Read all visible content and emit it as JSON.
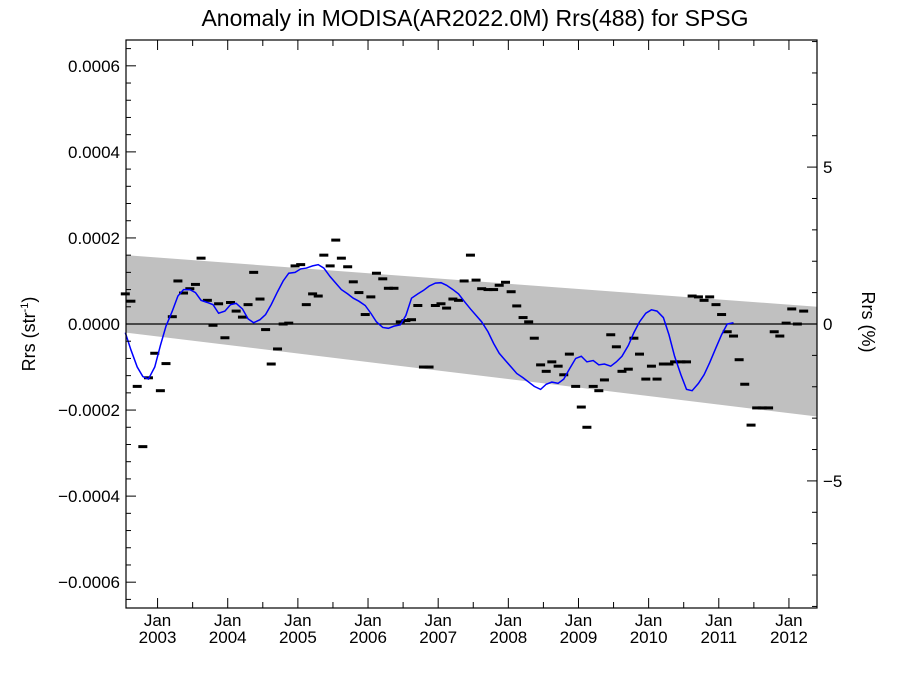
{
  "chart_data": {
    "type": "line",
    "title": "Anomaly in MODISA(AR2022.0M) Rrs(488) for SPSG",
    "ylabel_left": "Rrs (str",
    "ylabel_left_sup": "-1",
    "ylabel_left_close": ")",
    "ylabel_right": "Rrs (%)",
    "xlabel": "",
    "x_range": [
      2002.55,
      2012.4
    ],
    "y_range_left": [
      -0.00066,
      0.00066
    ],
    "y_range_right": [
      -9.05,
      9.05
    ],
    "y_ticks_left": [
      "0.0006",
      "0.0004",
      "0.0002",
      "0.0000",
      "−0.0002",
      "−0.0004",
      "−0.0006"
    ],
    "y_tick_values_left": [
      0.0006,
      0.0004,
      0.0002,
      0.0,
      -0.0002,
      -0.0004,
      -0.0006
    ],
    "y_ticks_right": [
      "5",
      "0",
      "−5"
    ],
    "y_tick_values_right": [
      5,
      0,
      -5
    ],
    "x_ticks": [
      {
        "x": 2003.0,
        "month": "Jan",
        "year": "2003"
      },
      {
        "x": 2004.0,
        "month": "Jan",
        "year": "2004"
      },
      {
        "x": 2005.0,
        "month": "Jan",
        "year": "2005"
      },
      {
        "x": 2006.0,
        "month": "Jan",
        "year": "2006"
      },
      {
        "x": 2007.0,
        "month": "Jan",
        "year": "2007"
      },
      {
        "x": 2008.0,
        "month": "Jan",
        "year": "2008"
      },
      {
        "x": 2009.0,
        "month": "Jan",
        "year": "2009"
      },
      {
        "x": 2010.0,
        "month": "Jan",
        "year": "2010"
      },
      {
        "x": 2011.0,
        "month": "Jan",
        "year": "2011"
      },
      {
        "x": 2012.0,
        "month": "Jan",
        "year": "2012"
      }
    ],
    "band": {
      "color": "#c0c0c0",
      "upper": [
        [
          2002.55,
          0.00016
        ],
        [
          2012.4,
          4e-05
        ]
      ],
      "lower": [
        [
          2002.55,
          -2e-05
        ],
        [
          2012.4,
          -0.000215
        ]
      ]
    },
    "zero_line": true,
    "grid": false,
    "series": [
      {
        "style": "dash-markers",
        "color": "#000000",
        "points": [
          [
            2002.54,
            7e-05
          ],
          [
            2002.62,
            5.3e-05
          ],
          [
            2002.71,
            -0.000145
          ],
          [
            2002.79,
            -0.000285
          ],
          [
            2002.87,
            -0.000125
          ],
          [
            2002.96,
            -6.8e-05
          ],
          [
            2003.04,
            -0.000155
          ],
          [
            2003.12,
            -9.2e-05
          ],
          [
            2003.21,
            1.7e-05
          ],
          [
            2003.29,
            0.0001
          ],
          [
            2003.37,
            7.2e-05
          ],
          [
            2003.46,
            8.2e-05
          ],
          [
            2003.54,
            9.2e-05
          ],
          [
            2003.62,
            0.000153
          ],
          [
            2003.71,
            5.5e-05
          ],
          [
            2003.79,
            -3e-06
          ],
          [
            2003.87,
            4.7e-05
          ],
          [
            2003.96,
            -3.2e-05
          ],
          [
            2004.04,
            5e-05
          ],
          [
            2004.12,
            3e-05
          ],
          [
            2004.21,
            1.6e-05
          ],
          [
            2004.29,
            4.5e-05
          ],
          [
            2004.37,
            0.00012
          ],
          [
            2004.46,
            5.8e-05
          ],
          [
            2004.54,
            -1.3e-05
          ],
          [
            2004.62,
            -9.3e-05
          ],
          [
            2004.71,
            -5.8e-05
          ],
          [
            2004.79,
            0.0
          ],
          [
            2004.87,
            2e-06
          ],
          [
            2004.96,
            0.000135
          ],
          [
            2005.04,
            0.000138
          ],
          [
            2005.12,
            4.5e-05
          ],
          [
            2005.21,
            7e-05
          ],
          [
            2005.29,
            6.5e-05
          ],
          [
            2005.37,
            0.00016
          ],
          [
            2005.46,
            0.000135
          ],
          [
            2005.54,
            0.000195
          ],
          [
            2005.62,
            0.000153
          ],
          [
            2005.71,
            0.000133
          ],
          [
            2005.79,
            9.8e-05
          ],
          [
            2005.87,
            7.3e-05
          ],
          [
            2005.96,
            2.2e-05
          ],
          [
            2006.04,
            6.3e-05
          ],
          [
            2006.12,
            0.000118
          ],
          [
            2006.21,
            0.000105
          ],
          [
            2006.29,
            8.3e-05
          ],
          [
            2006.37,
            8.3e-05
          ],
          [
            2006.46,
            5e-06
          ],
          [
            2006.54,
            8e-06
          ],
          [
            2006.62,
            1e-05
          ],
          [
            2006.71,
            4.3e-05
          ],
          [
            2006.79,
            -0.0001
          ],
          [
            2006.87,
            -0.0001
          ],
          [
            2006.96,
            4.3e-05
          ],
          [
            2007.04,
            4.7e-05
          ],
          [
            2007.12,
            3.7e-05
          ],
          [
            2007.21,
            5.8e-05
          ],
          [
            2007.29,
            5.5e-05
          ],
          [
            2007.37,
            0.0001
          ],
          [
            2007.46,
            0.00016
          ],
          [
            2007.54,
            0.000102
          ],
          [
            2007.62,
            8.2e-05
          ],
          [
            2007.71,
            8e-05
          ],
          [
            2007.79,
            8e-05
          ],
          [
            2007.87,
            9e-05
          ],
          [
            2007.96,
            9.7e-05
          ],
          [
            2008.04,
            7.5e-05
          ],
          [
            2008.12,
            4.2e-05
          ],
          [
            2008.21,
            1.5e-05
          ],
          [
            2008.29,
            5e-06
          ],
          [
            2008.37,
            -3.3e-05
          ],
          [
            2008.46,
            -9.5e-05
          ],
          [
            2008.54,
            -0.00011
          ],
          [
            2008.62,
            -8.8e-05
          ],
          [
            2008.71,
            -9.8e-05
          ],
          [
            2008.79,
            -0.000118
          ],
          [
            2008.87,
            -7e-05
          ],
          [
            2008.96,
            -0.000145
          ],
          [
            2009.04,
            -0.000193
          ],
          [
            2009.12,
            -0.00024
          ],
          [
            2009.21,
            -0.000145
          ],
          [
            2009.29,
            -0.000155
          ],
          [
            2009.37,
            -0.00013
          ],
          [
            2009.46,
            -2.5e-05
          ],
          [
            2009.54,
            -5.3e-05
          ],
          [
            2009.62,
            -0.00011
          ],
          [
            2009.71,
            -0.000105
          ],
          [
            2009.79,
            -3.3e-05
          ],
          [
            2009.87,
            -7e-05
          ],
          [
            2009.96,
            -0.000128
          ],
          [
            2010.04,
            -9.8e-05
          ],
          [
            2010.12,
            -0.000128
          ],
          [
            2010.21,
            -9.3e-05
          ],
          [
            2010.29,
            -9.3e-05
          ],
          [
            2010.37,
            -8.8e-05
          ],
          [
            2010.46,
            -8.8e-05
          ],
          [
            2010.54,
            -8.8e-05
          ],
          [
            2010.62,
            6.5e-05
          ],
          [
            2010.71,
            6.3e-05
          ],
          [
            2010.79,
            5.5e-05
          ],
          [
            2010.87,
            6.3e-05
          ],
          [
            2010.96,
            4.5e-05
          ],
          [
            2011.04,
            2.2e-05
          ],
          [
            2011.12,
            -1.8e-05
          ],
          [
            2011.21,
            -2.8e-05
          ],
          [
            2011.29,
            -8.3e-05
          ],
          [
            2011.37,
            -0.00014
          ],
          [
            2011.46,
            -0.000235
          ],
          [
            2011.54,
            -0.000195
          ],
          [
            2011.62,
            -0.000195
          ],
          [
            2011.71,
            -0.000195
          ],
          [
            2011.79,
            -1.8e-05
          ],
          [
            2011.87,
            -2.8e-05
          ],
          [
            2011.96,
            2e-06
          ],
          [
            2012.04,
            3.5e-05
          ],
          [
            2012.12,
            0.0
          ],
          [
            2012.21,
            3e-05
          ]
        ]
      },
      {
        "style": "line",
        "color": "#0000ff",
        "points": [
          [
            2002.54,
            -2e-05
          ],
          [
            2002.62,
            -6e-05
          ],
          [
            2002.71,
            -0.0001
          ],
          [
            2002.79,
            -0.000122
          ],
          [
            2002.87,
            -0.000128
          ],
          [
            2002.96,
            -0.0001
          ],
          [
            2003.04,
            -5e-05
          ],
          [
            2003.12,
            -5e-06
          ],
          [
            2003.21,
            3e-05
          ],
          [
            2003.29,
            6.5e-05
          ],
          [
            2003.37,
            8e-05
          ],
          [
            2003.46,
            8e-05
          ],
          [
            2003.54,
            7.3e-05
          ],
          [
            2003.62,
            5.5e-05
          ],
          [
            2003.71,
            5e-05
          ],
          [
            2003.79,
            4.5e-05
          ],
          [
            2003.87,
            2.5e-05
          ],
          [
            2003.96,
            3e-05
          ],
          [
            2004.04,
            4.5e-05
          ],
          [
            2004.12,
            4.8e-05
          ],
          [
            2004.21,
            3.5e-05
          ],
          [
            2004.29,
            1.2e-05
          ],
          [
            2004.37,
            3e-06
          ],
          [
            2004.46,
            1e-05
          ],
          [
            2004.54,
            2.2e-05
          ],
          [
            2004.62,
            4.5e-05
          ],
          [
            2004.71,
            7.5e-05
          ],
          [
            2004.79,
            0.0001
          ],
          [
            2004.87,
            0.000118
          ],
          [
            2004.96,
            0.00012
          ],
          [
            2005.04,
            0.000128
          ],
          [
            2005.12,
            0.00013
          ],
          [
            2005.21,
            0.000135
          ],
          [
            2005.29,
            0.000138
          ],
          [
            2005.37,
            0.00013
          ],
          [
            2005.46,
            0.00011
          ],
          [
            2005.54,
            9.5e-05
          ],
          [
            2005.62,
            8e-05
          ],
          [
            2005.71,
            7e-05
          ],
          [
            2005.79,
            6e-05
          ],
          [
            2005.87,
            5.3e-05
          ],
          [
            2005.96,
            4.3e-05
          ],
          [
            2006.04,
            2.5e-05
          ],
          [
            2006.12,
            5e-06
          ],
          [
            2006.21,
            -8e-06
          ],
          [
            2006.29,
            -1e-05
          ],
          [
            2006.37,
            -5e-06
          ],
          [
            2006.46,
            -2e-06
          ],
          [
            2006.54,
            2e-05
          ],
          [
            2006.62,
            6e-05
          ],
          [
            2006.71,
            7e-05
          ],
          [
            2006.79,
            7.8e-05
          ],
          [
            2006.87,
            8.8e-05
          ],
          [
            2006.96,
            9.5e-05
          ],
          [
            2007.04,
            9.6e-05
          ],
          [
            2007.12,
            9e-05
          ],
          [
            2007.21,
            8e-05
          ],
          [
            2007.29,
            7e-05
          ],
          [
            2007.37,
            5.3e-05
          ],
          [
            2007.46,
            3.5e-05
          ],
          [
            2007.54,
            2e-05
          ],
          [
            2007.62,
            5e-06
          ],
          [
            2007.71,
            -1.8e-05
          ],
          [
            2007.79,
            -4.5e-05
          ],
          [
            2007.87,
            -6.8e-05
          ],
          [
            2007.96,
            -8.5e-05
          ],
          [
            2008.04,
            -0.0001
          ],
          [
            2008.12,
            -0.000115
          ],
          [
            2008.21,
            -0.000125
          ],
          [
            2008.29,
            -0.000135
          ],
          [
            2008.37,
            -0.000145
          ],
          [
            2008.46,
            -0.000152
          ],
          [
            2008.54,
            -0.00014
          ],
          [
            2008.62,
            -0.000135
          ],
          [
            2008.71,
            -0.000138
          ],
          [
            2008.79,
            -0.000128
          ],
          [
            2008.87,
            -0.000105
          ],
          [
            2008.96,
            -8e-05
          ],
          [
            2009.04,
            -7.5e-05
          ],
          [
            2009.12,
            -8.8e-05
          ],
          [
            2009.21,
            -8.5e-05
          ],
          [
            2009.29,
            -9.5e-05
          ],
          [
            2009.37,
            -9.3e-05
          ],
          [
            2009.46,
            -9.8e-05
          ],
          [
            2009.54,
            -8.8e-05
          ],
          [
            2009.62,
            -7.5e-05
          ],
          [
            2009.71,
            -5e-05
          ],
          [
            2009.79,
            -2e-05
          ],
          [
            2009.87,
            5e-06
          ],
          [
            2009.96,
            2.5e-05
          ],
          [
            2010.04,
            3.3e-05
          ],
          [
            2010.12,
            3e-05
          ],
          [
            2010.21,
            1.5e-05
          ],
          [
            2010.29,
            -2.5e-05
          ],
          [
            2010.37,
            -7.5e-05
          ],
          [
            2010.46,
            -0.000118
          ],
          [
            2010.54,
            -0.000152
          ],
          [
            2010.62,
            -0.000155
          ],
          [
            2010.71,
            -0.000138
          ],
          [
            2010.79,
            -0.000118
          ],
          [
            2010.87,
            -9e-05
          ],
          [
            2010.96,
            -5.5e-05
          ],
          [
            2011.04,
            -2.5e-05
          ],
          [
            2011.12,
            0.0
          ],
          [
            2011.21,
            3e-06
          ]
        ]
      }
    ]
  }
}
